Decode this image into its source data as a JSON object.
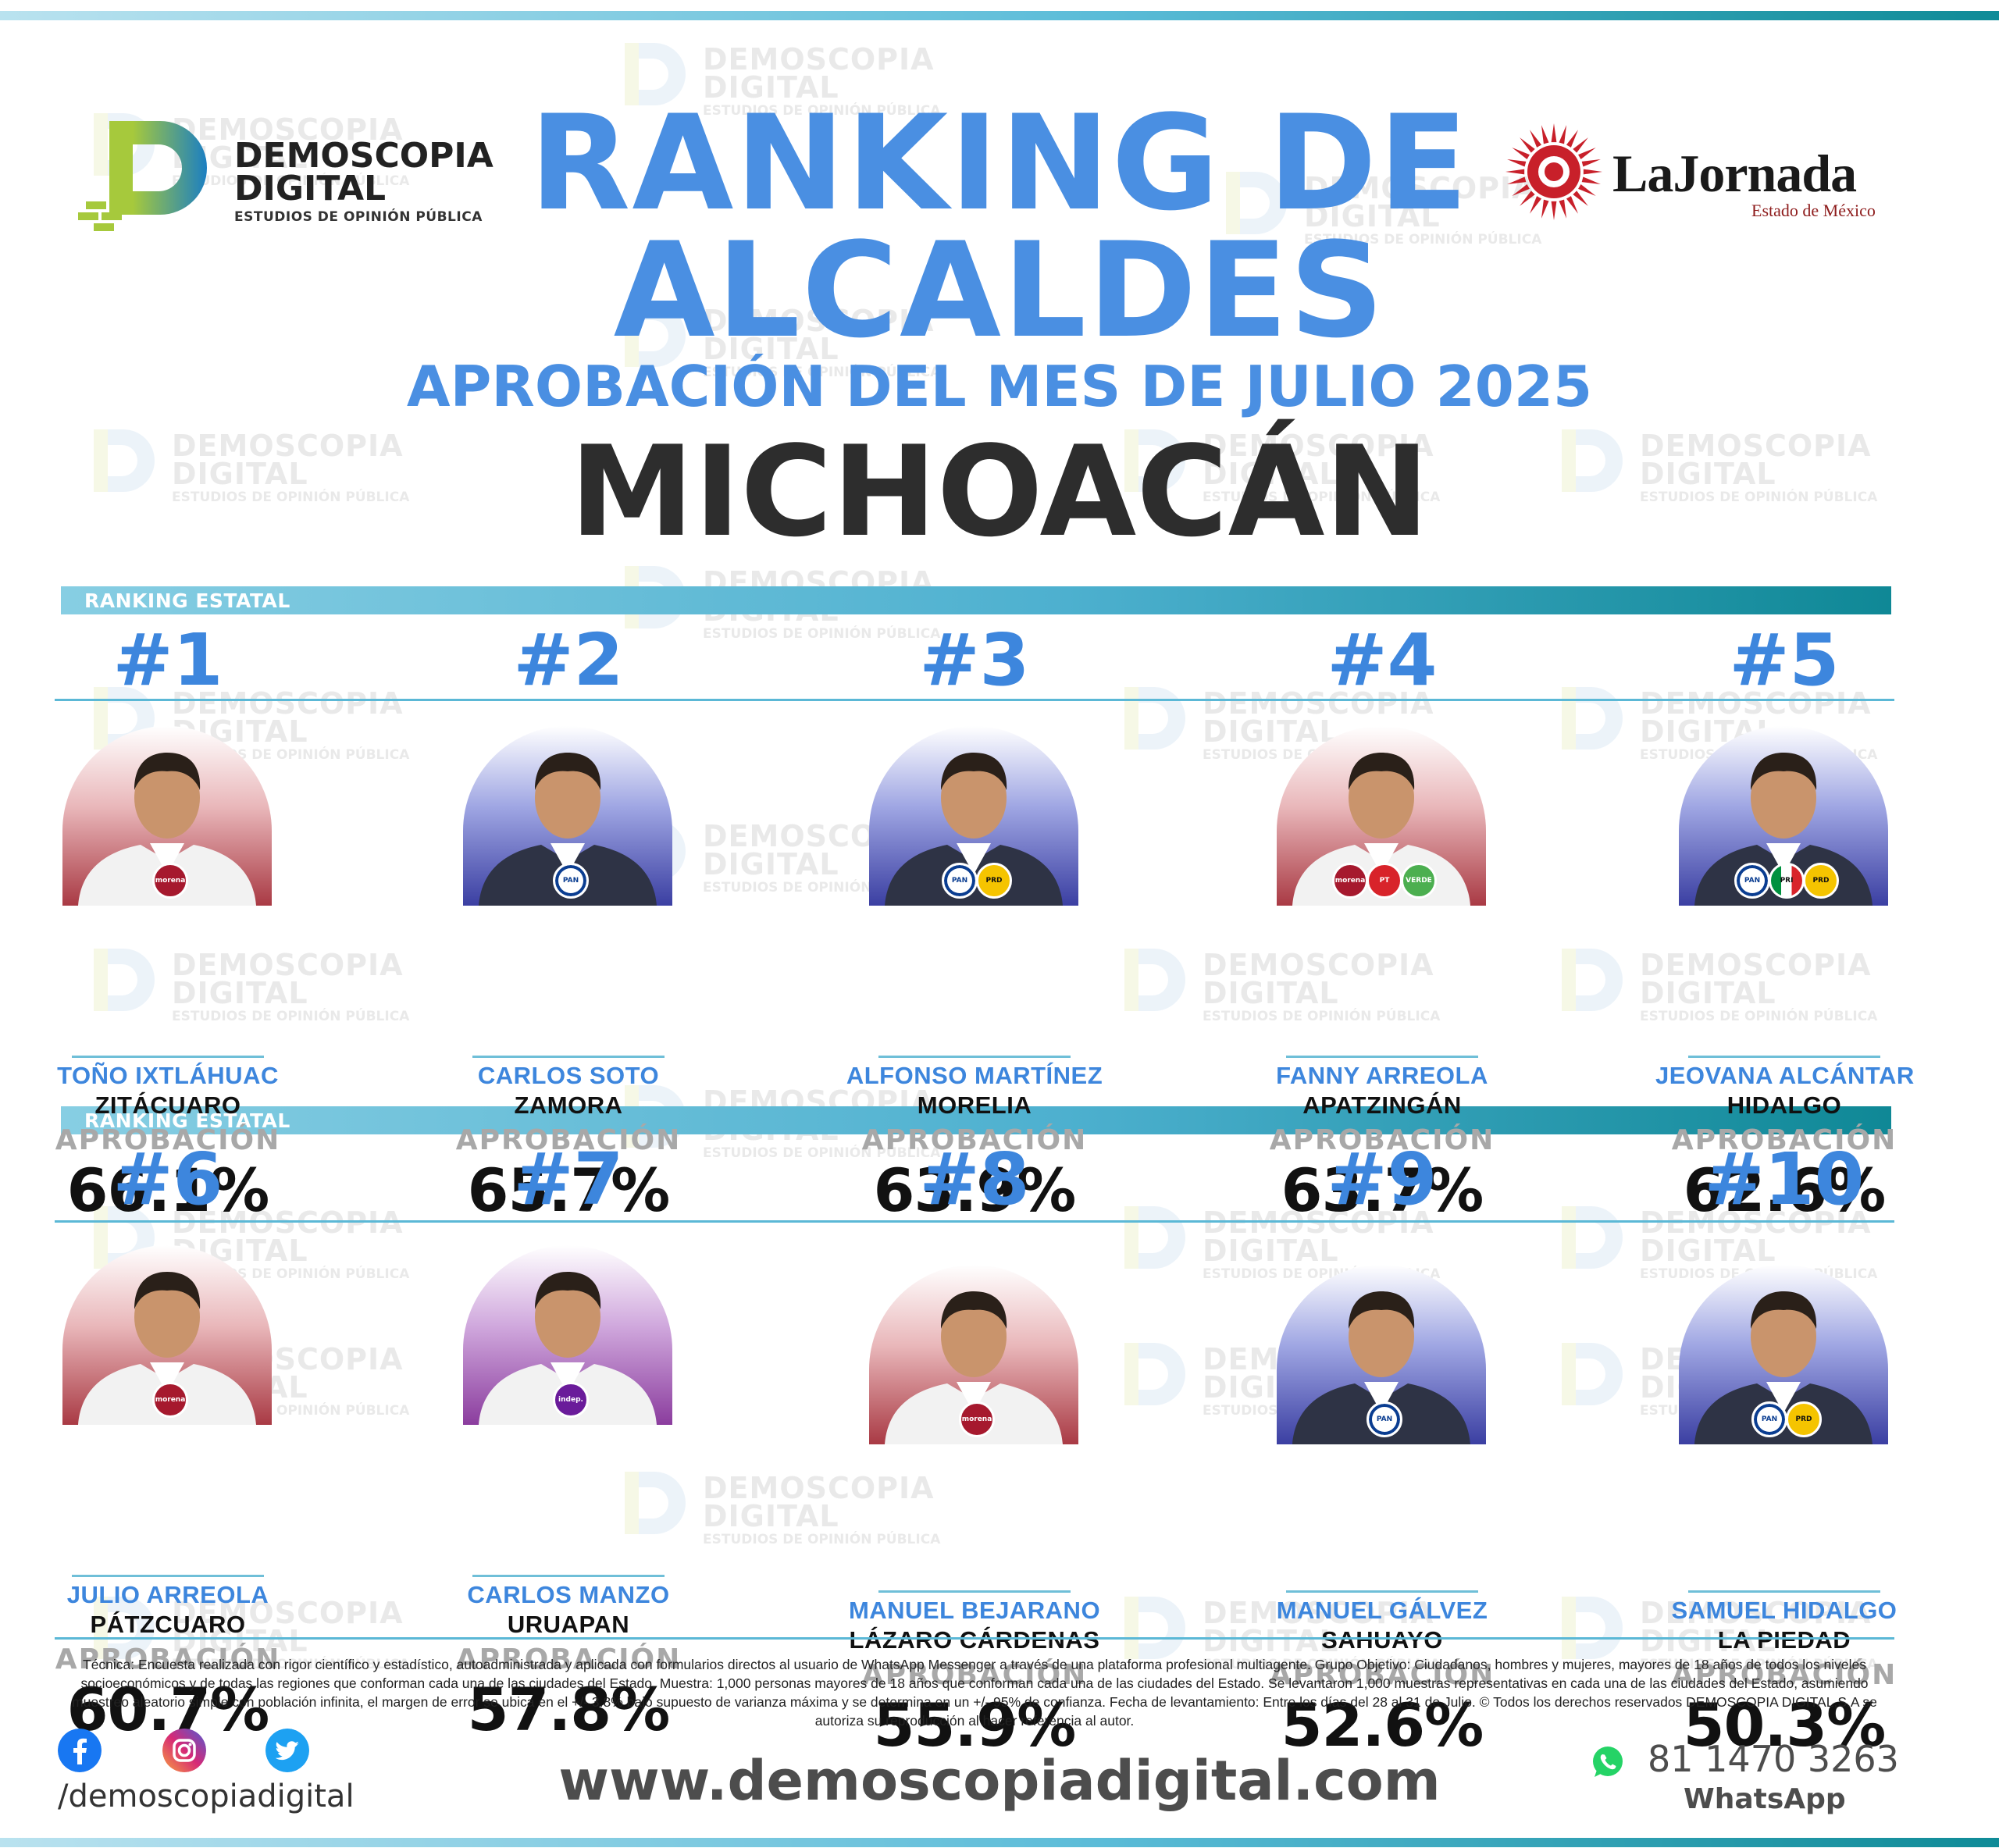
{
  "header": {
    "brand_line1": "DEMOSCOPIA",
    "brand_line2": "DIGITAL",
    "brand_sub": "ESTUDIOS DE OPINIÓN PÚBLICA",
    "title_line1": "RANKING DE",
    "title_line2": "ALCALDES",
    "subtitle": "APROBACIÓN DEL MES DE JULIO 2025",
    "state": "MICHOACÁN",
    "partner_name": "LaJornada",
    "partner_sub": "Estado de México"
  },
  "watermark": {
    "line1": "DEMOSCOPIA",
    "line2": "DIGITAL",
    "line3": "ESTUDIOS DE OPINIÓN PÚBLICA"
  },
  "section_label": "RANKING ESTATAL",
  "approval_label": "APROBACIÓN",
  "ranking": [
    {
      "rank": "#1",
      "name": "TOÑO IXTLÁHUAC",
      "city": "ZITÁCUARO",
      "approval": "66.1%",
      "approval_value": 66.1,
      "bg": "red",
      "parties": [
        "morena"
      ]
    },
    {
      "rank": "#2",
      "name": "CARLOS SOTO",
      "city": "ZAMORA",
      "approval": "65.7%",
      "approval_value": 65.7,
      "bg": "blue",
      "parties": [
        "PAN"
      ]
    },
    {
      "rank": "#3",
      "name": "ALFONSO MARTÍNEZ",
      "city": "MORELIA",
      "approval": "63.9%",
      "approval_value": 63.9,
      "bg": "blue",
      "parties": [
        "PAN",
        "PRD"
      ]
    },
    {
      "rank": "#4",
      "name": "FANNY ARREOLA",
      "city": "APATZINGÁN",
      "approval": "63.7%",
      "approval_value": 63.7,
      "bg": "red",
      "parties": [
        "morena",
        "PT",
        "VERDE"
      ]
    },
    {
      "rank": "#5",
      "name": "JEOVANA ALCÁNTAR",
      "city": "HIDALGO",
      "approval": "62.6%",
      "approval_value": 62.6,
      "bg": "blue",
      "parties": [
        "PAN",
        "PRI",
        "PRD"
      ]
    },
    {
      "rank": "#6",
      "name": "JULIO ARREOLA",
      "city": "PÁTZCUARO",
      "approval": "60.7%",
      "approval_value": 60.7,
      "bg": "red",
      "parties": [
        "morena"
      ]
    },
    {
      "rank": "#7",
      "name": "CARLOS MANZO",
      "city": "URUAPAN",
      "approval": "57.8%",
      "approval_value": 57.8,
      "bg": "purple",
      "parties": [
        "independiente"
      ]
    },
    {
      "rank": "#8",
      "name": "MANUEL BEJARANO",
      "city": "LÁZARO CÁRDENAS",
      "approval": "55.9%",
      "approval_value": 55.9,
      "bg": "red",
      "parties": [
        "morena"
      ]
    },
    {
      "rank": "#9",
      "name": "MANUEL GÁLVEZ",
      "city": "SAHUAYO",
      "approval": "52.6%",
      "approval_value": 52.6,
      "bg": "blue",
      "parties": [
        "PAN"
      ]
    },
    {
      "rank": "#10",
      "name": "SAMUEL HIDALGO",
      "city": "LA PIEDAD",
      "approval": "50.3%",
      "approval_value": 50.3,
      "bg": "blue",
      "parties": [
        "PAN",
        "PRD"
      ]
    }
  ],
  "party_colors": {
    "morena": "#a6192e",
    "PAN": "#0a3d91",
    "PRD": "#f5c400",
    "PT": "#d8232a",
    "VERDE": "#4caf50",
    "PRI": "#00913f",
    "independiente": "#6a1b9a"
  },
  "footer": {
    "disclaimer": "Técnica: Encuesta realizada con rigor científico y estadístico, autoadministrada y aplicada con formularios directos al usuario de WhatsApp Messenger a través de una plataforma profesional multiagente. Grupo Objetivo: Ciudadanos, hombres y mujeres, mayores de 18 años de todos los niveles socioeconómicos y de todas las regiones que conforman cada una de las ciudades del Estado. Muestra: 1,000 personas mayores de 18 años que conforman cada una de las ciudades del Estado. Se levantaron 1,000 muestras representativas en cada una de las ciudades del Estado, asumiendo muestreo aleatorio simple con población infinita, el margen de error se ubica en el +/- 3.8% bajo supuesto de varianza máxima y se determina en un +/- 95% de confianza. Fecha de levantamiento: Entre los días del 28 al 31 de Julio. © Todos los derechos reservados DEMOSCOPIA DIGITAL,S.A se autoriza su reproducción al hacer referencia al autor.",
    "social_handle": "/demoscopiadigital",
    "website": "www.demoscopiadigital.com",
    "phone": "81 1470 3263",
    "phone_label": "WhatsApp",
    "social_icons": [
      "facebook-icon",
      "instagram-icon",
      "twitter-icon"
    ]
  }
}
